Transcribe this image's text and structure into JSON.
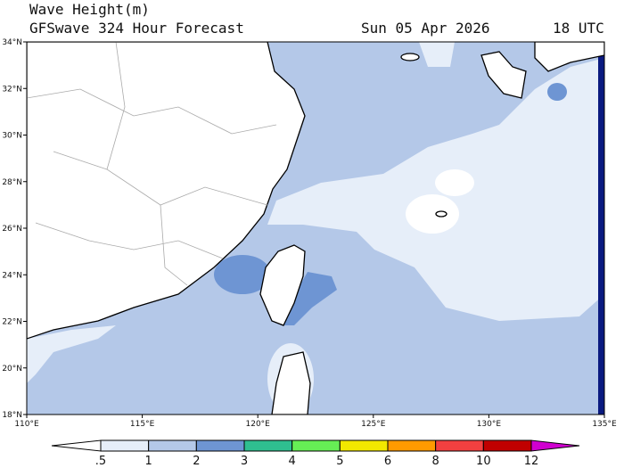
{
  "header": {
    "title": "Wave Height(m)",
    "subtitle": "GFSwave 324 Hour Forecast",
    "date": "Sun 05 Apr 2026",
    "time": "18 UTC"
  },
  "map": {
    "lat_labels": [
      "18°N",
      "20°N",
      "22°N",
      "24°N",
      "26°N",
      "28°N",
      "30°N",
      "32°N",
      "34°N"
    ],
    "lon_labels": [
      "110°E",
      "115°E",
      "120°E",
      "125°E",
      "130°E",
      "135°E"
    ]
  },
  "colorbar": {
    "labels": [
      ".5",
      "1",
      "2",
      "3",
      "4",
      "5",
      "6",
      "8",
      "10",
      "12"
    ],
    "colors": [
      "#ffffff",
      "#e6eef9",
      "#b4c8e8",
      "#6e95d3",
      "#2fbf90",
      "#66ee55",
      "#f2e800",
      "#ff9a00",
      "#f24040",
      "#c00000",
      "#d000d0"
    ]
  }
}
